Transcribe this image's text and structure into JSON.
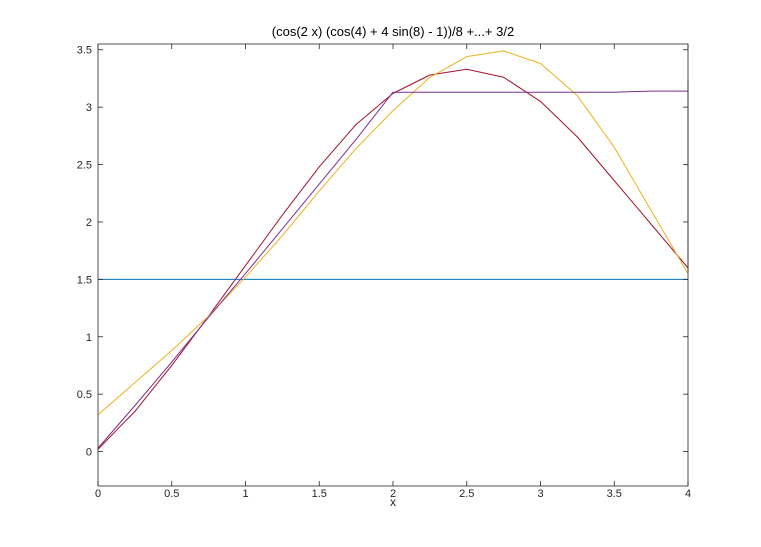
{
  "chart_data": {
    "type": "line",
    "title": "(cos(2 x) (cos(4) + 4 sin(8) - 1))/8 +...+ 3/2",
    "xlabel": "x",
    "ylabel": "",
    "xlim": [
      0,
      4
    ],
    "ylim": [
      -0.3,
      3.55
    ],
    "grid": false,
    "box": true,
    "x_ticks": [
      0,
      0.5,
      1,
      1.5,
      2,
      2.5,
      3,
      3.5,
      4
    ],
    "x_tick_labels": [
      "0",
      "0.5",
      "1",
      "1.5",
      "2",
      "2.5",
      "3",
      "3.5",
      "4"
    ],
    "y_ticks": [
      0,
      0.5,
      1,
      1.5,
      2,
      2.5,
      3,
      3.5
    ],
    "y_tick_labels": [
      "0",
      "0.5",
      "1",
      "1.5",
      "2",
      "2.5",
      "3",
      "3.5"
    ],
    "x": [
      0,
      0.25,
      0.5,
      0.75,
      1,
      1.25,
      1.5,
      1.75,
      2,
      2.25,
      2.5,
      2.75,
      3,
      3.25,
      3.5,
      3.75,
      4
    ],
    "series": [
      {
        "color": "#0072BD",
        "values": [
          1.5,
          1.5,
          1.5,
          1.5,
          1.5,
          1.5,
          1.5,
          1.5,
          1.5,
          1.5,
          1.5,
          1.5,
          1.5,
          1.5,
          1.5,
          1.5,
          1.5
        ]
      },
      {
        "color": "#A2142F",
        "values": [
          0.02,
          0.35,
          0.75,
          1.18,
          1.62,
          2.06,
          2.48,
          2.85,
          3.12,
          3.28,
          3.33,
          3.26,
          3.05,
          2.74,
          2.36,
          1.98,
          1.6
        ]
      },
      {
        "color": "#EDB120",
        "values": [
          0.32,
          0.6,
          0.88,
          1.18,
          1.52,
          1.88,
          2.27,
          2.64,
          2.97,
          3.26,
          3.44,
          3.49,
          3.38,
          3.1,
          2.65,
          2.1,
          1.55
        ]
      },
      {
        "color": "#7E2F8E",
        "values": [
          0.03,
          0.4,
          0.78,
          1.17,
          1.55,
          1.94,
          2.33,
          2.72,
          3.13,
          3.13,
          3.13,
          3.13,
          3.13,
          3.13,
          3.13,
          3.14,
          3.14
        ],
        "end_drop": {
          "x": 4,
          "y_top": 3.24,
          "y_bottom": 1.57
        }
      }
    ]
  }
}
